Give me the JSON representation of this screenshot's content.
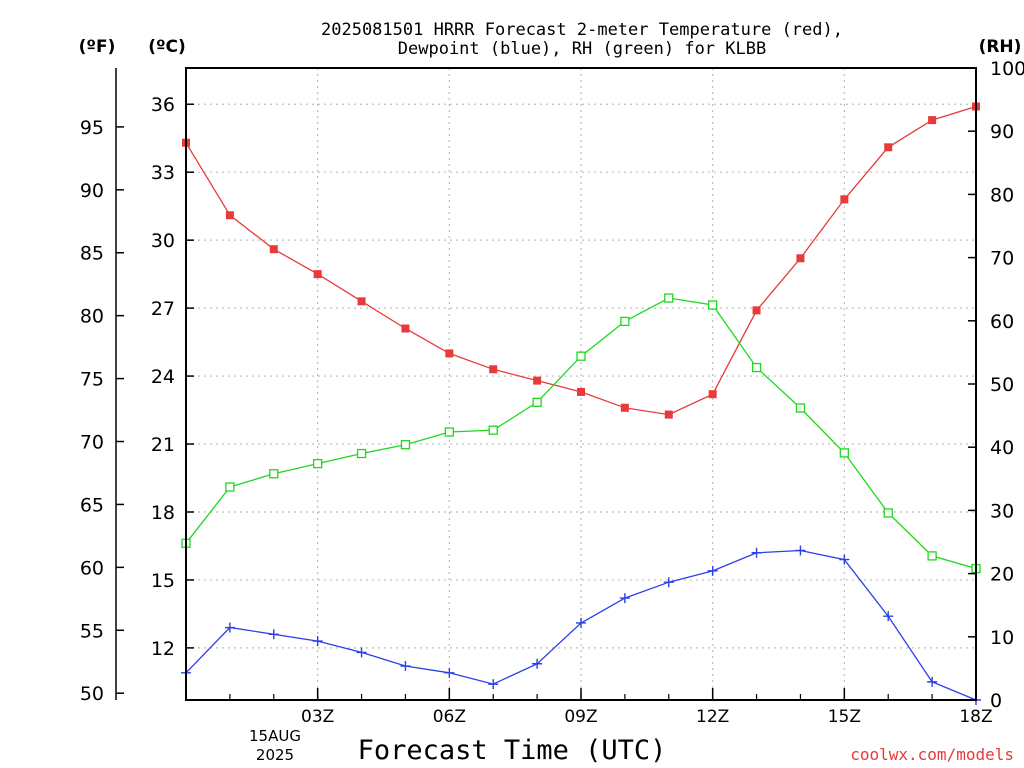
{
  "chart_data": {
    "type": "line",
    "title_line1": "2025081501 HRRR Forecast 2-meter Temperature (red),",
    "title_line2": "Dewpoint (blue), RH (green) for KLBB",
    "xlabel": "Forecast Time (UTC)",
    "credit": "coolwx.com/models",
    "unit_f": "(ºF)",
    "unit_c": "(ºC)",
    "unit_rh": "(RH)",
    "x_date_line1": "15AUG",
    "x_date_line2": "2025",
    "x_range": [
      0,
      18
    ],
    "x_ticks": [
      {
        "hour": 3,
        "label": "03Z"
      },
      {
        "hour": 6,
        "label": "06Z"
      },
      {
        "hour": 9,
        "label": "09Z"
      },
      {
        "hour": 12,
        "label": "12Z"
      },
      {
        "hour": 15,
        "label": "15Z"
      },
      {
        "hour": 18,
        "label": "18Z"
      }
    ],
    "ylim_c": [
      9.7,
      37.6
    ],
    "yticks_c": [
      "12",
      "15",
      "18",
      "21",
      "24",
      "27",
      "30",
      "33",
      "36"
    ],
    "yticks_f": [
      "50",
      "55",
      "60",
      "65",
      "70",
      "75",
      "80",
      "85",
      "90",
      "95"
    ],
    "ylim_rh": [
      0,
      100
    ],
    "yticks_rh": [
      "0",
      "10",
      "20",
      "30",
      "40",
      "50",
      "60",
      "70",
      "80",
      "90",
      "100"
    ],
    "grid": true,
    "colors": {
      "temperature": "#e83a3a",
      "dewpoint": "#2b3fe8",
      "rh": "#1ed81e",
      "credit": "#e83a3a"
    },
    "hours": [
      0,
      1,
      2,
      3,
      4,
      5,
      6,
      7,
      8,
      9,
      10,
      11,
      12,
      13,
      14,
      15,
      16,
      17,
      18
    ],
    "series": [
      {
        "key": "temperature",
        "axis": "c",
        "marker": "filled-square",
        "values": [
          34.3,
          31.1,
          29.6,
          28.5,
          27.3,
          26.1,
          25.0,
          24.3,
          23.8,
          23.3,
          22.6,
          22.3,
          23.2,
          26.9,
          29.2,
          31.8,
          34.1,
          35.3,
          35.9
        ]
      },
      {
        "key": "dewpoint",
        "axis": "c",
        "marker": "plus",
        "values": [
          10.9,
          12.9,
          12.6,
          12.3,
          11.8,
          11.2,
          10.9,
          10.4,
          11.3,
          13.1,
          14.2,
          14.9,
          15.4,
          16.2,
          16.3,
          15.9,
          13.4,
          10.5,
          9.7
        ]
      },
      {
        "key": "rh",
        "axis": "rh",
        "marker": "open-square",
        "values": [
          24.8,
          33.7,
          35.8,
          37.4,
          39.0,
          40.4,
          42.4,
          42.7,
          47.1,
          54.4,
          59.9,
          63.6,
          62.5,
          52.6,
          46.2,
          39.1,
          29.6,
          22.8,
          20.8
        ]
      }
    ]
  }
}
